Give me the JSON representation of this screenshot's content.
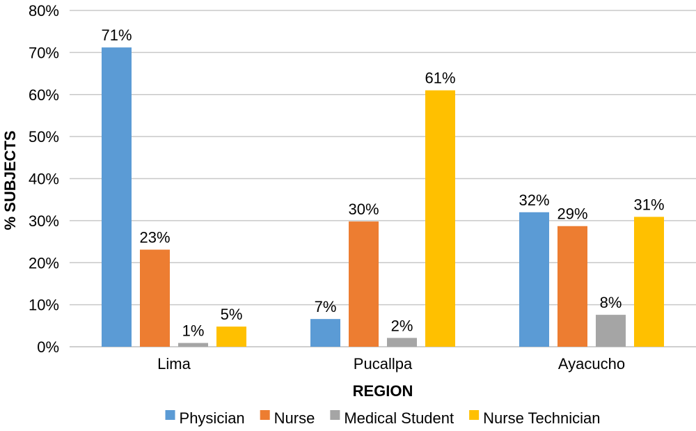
{
  "chart_data": {
    "type": "bar",
    "title": "",
    "xlabel": "REGION",
    "ylabel": "% SUBJECTS",
    "categories": [
      "Lima",
      "Pucallpa",
      "Ayacucho"
    ],
    "ylim": [
      0,
      80
    ],
    "yticks": [
      0,
      10,
      20,
      30,
      40,
      50,
      60,
      70,
      80
    ],
    "ytick_suffix": "%",
    "grid": true,
    "legend_position": "bottom",
    "series": [
      {
        "name": "Physician",
        "color": "#5B9BD5",
        "values": [
          71.2,
          6.6,
          32.0
        ],
        "labels": [
          "71%",
          "7%",
          "32%"
        ]
      },
      {
        "name": "Nurse",
        "color": "#ED7D31",
        "values": [
          23.1,
          29.8,
          28.7
        ],
        "labels": [
          "23%",
          "30%",
          "29%"
        ]
      },
      {
        "name": "Medical Student",
        "color": "#A5A5A5",
        "values": [
          0.9,
          2.1,
          7.6
        ],
        "labels": [
          "1%",
          "2%",
          "8%"
        ]
      },
      {
        "name": "Nurse Technician",
        "color": "#FFC000",
        "values": [
          4.8,
          61.0,
          30.9
        ],
        "labels": [
          "5%",
          "61%",
          "31%"
        ]
      }
    ]
  }
}
